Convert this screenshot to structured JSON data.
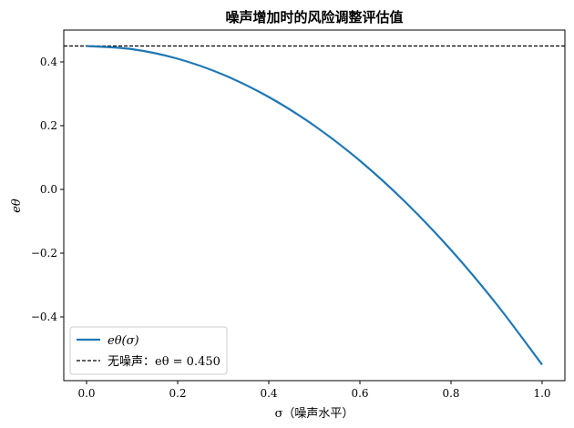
{
  "chart_data": {
    "type": "line",
    "title": "噪声增加时的风险调整评估值",
    "xlabel": "σ（噪声水平）",
    "ylabel": "eθ",
    "xlim": [
      -0.05,
      1.05
    ],
    "ylim": [
      -0.6,
      0.5
    ],
    "xticks": [
      0.0,
      0.2,
      0.4,
      0.6,
      0.8,
      1.0
    ],
    "xtick_labels": [
      "0.0",
      "0.2",
      "0.4",
      "0.6",
      "0.8",
      "1.0"
    ],
    "yticks": [
      -0.4,
      -0.2,
      0.0,
      0.2,
      0.4
    ],
    "ytick_labels": [
      "−0.4",
      "−0.2",
      "0.0",
      "0.2",
      "0.4"
    ],
    "grid": false,
    "legend_placement": "lower-left",
    "series": [
      {
        "name": "eθ(σ)",
        "style": "solid",
        "color": "#1f77b4",
        "x": [
          0.0,
          0.1,
          0.2,
          0.3,
          0.4,
          0.5,
          0.6,
          0.7,
          0.8,
          0.9,
          1.0
        ],
        "y": [
          0.45,
          0.44,
          0.41,
          0.36,
          0.29,
          0.2,
          0.09,
          -0.04,
          -0.19,
          -0.36,
          -0.55
        ]
      },
      {
        "name": "无噪声：eθ = 0.450",
        "style": "dashed",
        "color": "#000000",
        "y_constant": 0.45
      }
    ]
  }
}
